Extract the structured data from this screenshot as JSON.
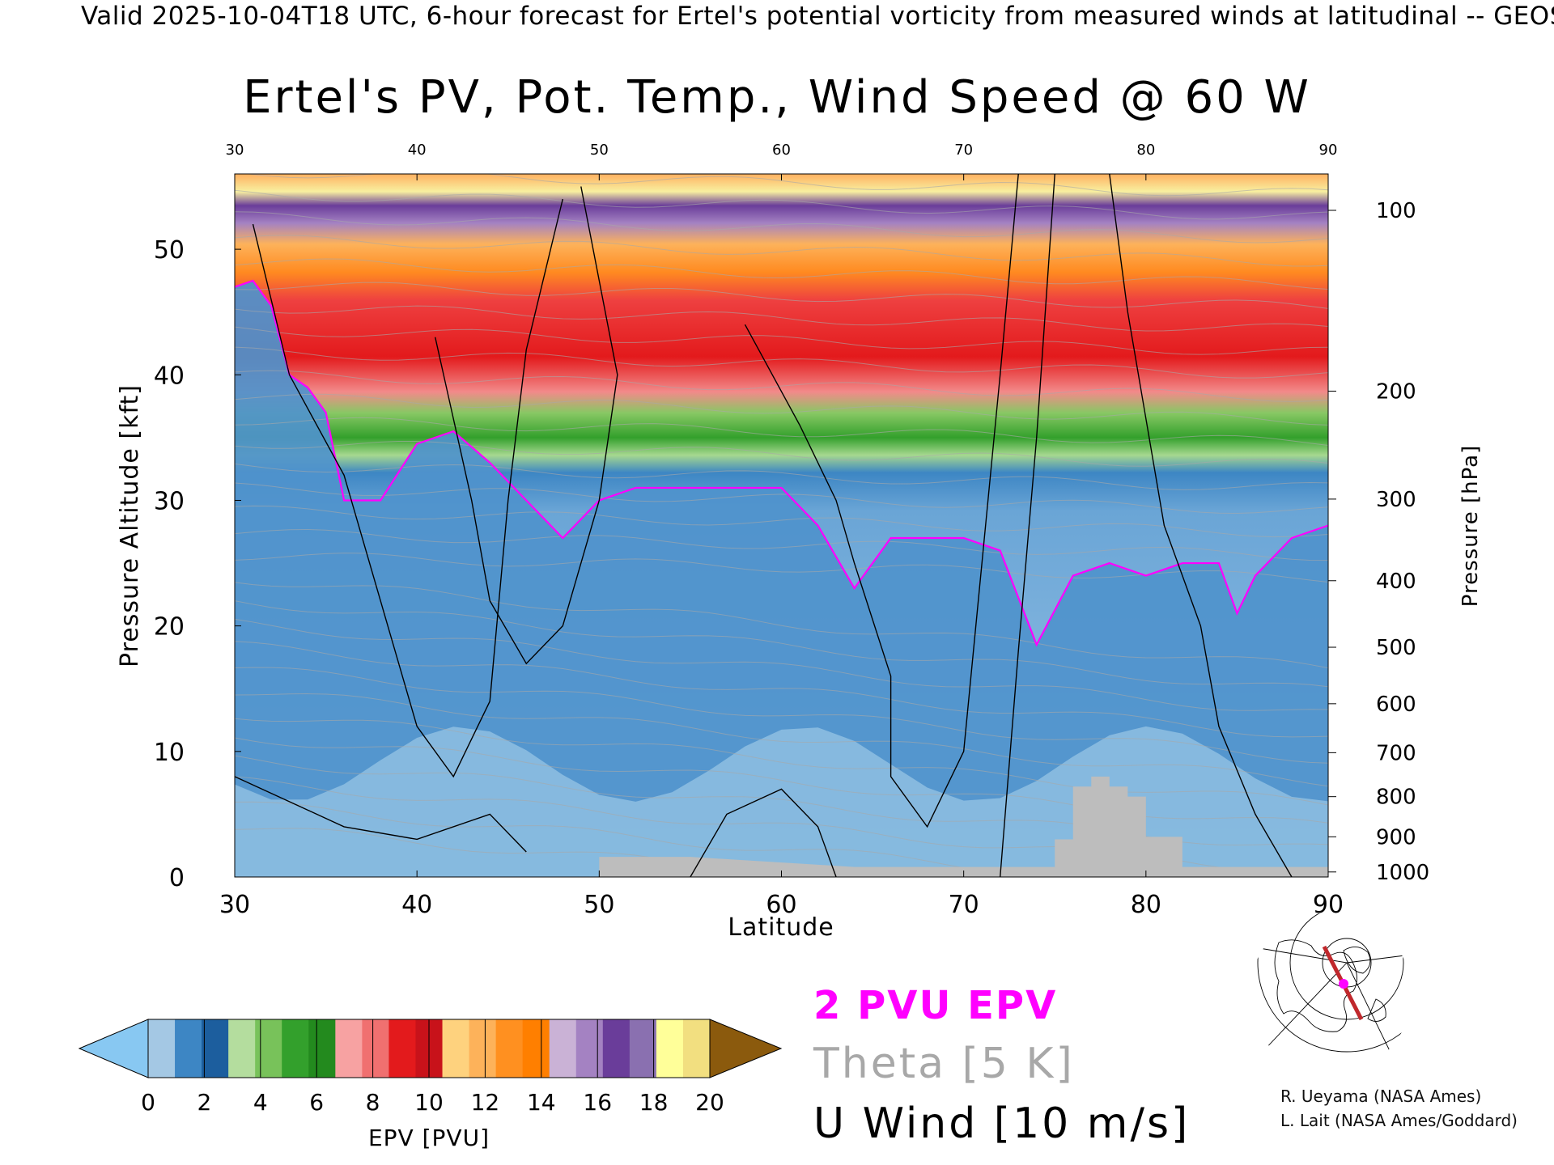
{
  "header": "Valid 2025-10-04T18 UTC, 6-hour forecast for Ertel's potential vorticity from measured winds at latitudinal -- GEOS",
  "chart_data": {
    "type": "heatmap",
    "title": "Ertel's PV, Pot. Temp., Wind Speed @ 60 W",
    "xlabel": "Latitude",
    "ylabel": "Pressure Altitude [kft]",
    "ylabel_right": "Pressure [hPa]",
    "xlim": [
      30,
      90
    ],
    "ylim": [
      0,
      56
    ],
    "x_ticks": [
      "30",
      "40",
      "50",
      "60",
      "70",
      "80",
      "90"
    ],
    "x_ticks_top": [
      "30",
      "40",
      "50",
      "60",
      "70",
      "80",
      "90"
    ],
    "y_ticks": [
      "0",
      "10",
      "20",
      "30",
      "40",
      "50"
    ],
    "pressure_ticks": [
      {
        "label": "100",
        "kft": 53.1
      },
      {
        "label": "200",
        "kft": 38.7
      },
      {
        "label": "300",
        "kft": 30.1
      },
      {
        "label": "400",
        "kft": 23.6
      },
      {
        "label": "500",
        "kft": 18.3
      },
      {
        "label": "600",
        "kft": 13.8
      },
      {
        "label": "700",
        "kft": 9.9
      },
      {
        "label": "800",
        "kft": 6.4
      },
      {
        "label": "900",
        "kft": 3.2
      },
      {
        "label": "1000",
        "kft": 0.4
      }
    ],
    "tropopause_2pvu_kft": [
      {
        "lat": 30,
        "kft": 47
      },
      {
        "lat": 31,
        "kft": 47.5
      },
      {
        "lat": 32,
        "kft": 45.5
      },
      {
        "lat": 33,
        "kft": 40
      },
      {
        "lat": 34,
        "kft": 39
      },
      {
        "lat": 35,
        "kft": 37
      },
      {
        "lat": 36,
        "kft": 30
      },
      {
        "lat": 38,
        "kft": 30
      },
      {
        "lat": 40,
        "kft": 34.5
      },
      {
        "lat": 42,
        "kft": 35.5
      },
      {
        "lat": 44,
        "kft": 33
      },
      {
        "lat": 46,
        "kft": 30
      },
      {
        "lat": 48,
        "kft": 27
      },
      {
        "lat": 50,
        "kft": 30
      },
      {
        "lat": 52,
        "kft": 31
      },
      {
        "lat": 56,
        "kft": 31
      },
      {
        "lat": 60,
        "kft": 31
      },
      {
        "lat": 62,
        "kft": 28
      },
      {
        "lat": 64,
        "kft": 23
      },
      {
        "lat": 66,
        "kft": 27
      },
      {
        "lat": 70,
        "kft": 27
      },
      {
        "lat": 72,
        "kft": 26
      },
      {
        "lat": 74,
        "kft": 18.5
      },
      {
        "lat": 76,
        "kft": 24
      },
      {
        "lat": 78,
        "kft": 25
      },
      {
        "lat": 80,
        "kft": 24
      },
      {
        "lat": 82,
        "kft": 25
      },
      {
        "lat": 84,
        "kft": 25
      },
      {
        "lat": 85,
        "kft": 21
      },
      {
        "lat": 86,
        "kft": 24
      },
      {
        "lat": 88,
        "kft": 27
      },
      {
        "lat": 90,
        "kft": 28
      }
    ],
    "terrain_kft": [
      {
        "lat": 50,
        "kft": 1.6
      },
      {
        "lat": 55,
        "kft": 1.6
      },
      {
        "lat": 64,
        "kft": 0.8
      },
      {
        "lat": 75,
        "kft": 0.8
      },
      {
        "lat": 75,
        "kft": 3
      },
      {
        "lat": 76,
        "kft": 3
      },
      {
        "lat": 76,
        "kft": 7.2
      },
      {
        "lat": 77,
        "kft": 7.2
      },
      {
        "lat": 77,
        "kft": 8
      },
      {
        "lat": 78,
        "kft": 8
      },
      {
        "lat": 78,
        "kft": 7.2
      },
      {
        "lat": 79,
        "kft": 7.2
      },
      {
        "lat": 79,
        "kft": 6.4
      },
      {
        "lat": 80,
        "kft": 6.4
      },
      {
        "lat": 80,
        "kft": 3.2
      },
      {
        "lat": 82,
        "kft": 3.2
      },
      {
        "lat": 82,
        "kft": 0.8
      },
      {
        "lat": 90,
        "kft": 0.8
      }
    ],
    "colorbar": {
      "label": "EPV [PVU]",
      "min": 0,
      "max": 20,
      "ticks": [
        "0",
        "2",
        "4",
        "6",
        "8",
        "10",
        "12",
        "14",
        "16",
        "18",
        "20"
      ],
      "extend": "both",
      "colors": [
        "#88c8f2",
        "#a4c8e4",
        "#3d86c4",
        "#1c5e9e",
        "#b4dd9e",
        "#78c25a",
        "#33a02c",
        "#238a1e",
        "#f7a2a2",
        "#f07070",
        "#e31a1c",
        "#c8121a",
        "#fed27e",
        "#fdb25a",
        "#ff9020",
        "#ff7f00",
        "#cab2d6",
        "#a482c2",
        "#6a3d9a",
        "#8a70b0",
        "#ffff99",
        "#f2df80",
        "#8b5a0d"
      ]
    },
    "contour_styles": {
      "pv_2pvu": "#ff00ff",
      "theta": "#a8a8a8",
      "u_wind": "#000000"
    }
  },
  "legend": {
    "pvu": "2 PVU EPV",
    "theta": "Theta [5 K]",
    "wind": "U Wind [10 m/s]"
  },
  "credits": {
    "line1": "R. Ueyama (NASA Ames)",
    "line2": "L. Lait (NASA Ames/Goddard)"
  },
  "locator_map": {
    "line_color": "#c0282c",
    "point_color": "#ff00ff"
  }
}
